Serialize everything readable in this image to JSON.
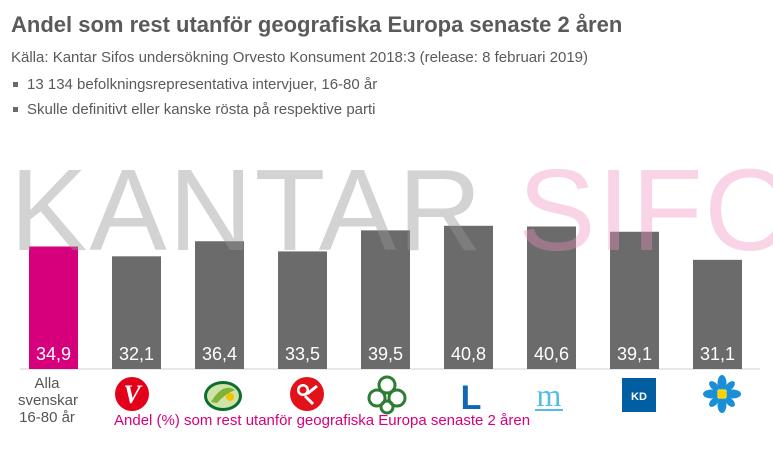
{
  "title": "Andel som rest utanför geografiska Europa senaste 2 åren",
  "source": "Källa: Kantar Sifos undersökning Orvesto Konsument 2018:3 (release: 8 februari 2019)",
  "notes": [
    "13 134 befolkningsrepresentativa intervjuer, 16-80 år",
    "Skulle definitivt eller kanske rösta på respektive parti"
  ],
  "watermark": {
    "part1": "KANTAR",
    "part2": "SIFO"
  },
  "colors": {
    "highlight": "#d6007d",
    "bar": "#6b6b6b",
    "label": "#ffffff",
    "text": "#5a5a5a"
  },
  "chart_data": {
    "type": "bar",
    "title": "Andel som rest utanför geografiska Europa senaste 2 åren",
    "legend": "Andel (%) som rest utanför geografiska Europa senaste 2 åren",
    "categories": [
      "Alla svenskar 16-80 år",
      "V",
      "C",
      "S",
      "MP",
      "L",
      "M",
      "KD",
      "SD"
    ],
    "values": [
      34.9,
      32.1,
      36.4,
      33.5,
      39.5,
      40.8,
      40.6,
      39.1,
      31.1
    ],
    "labels": [
      "34,9",
      "32,1",
      "36,4",
      "33,5",
      "39,5",
      "40,8",
      "40,6",
      "39,1",
      "31,1"
    ],
    "ylim": [
      0,
      45
    ],
    "xlabel": "",
    "ylabel": ""
  },
  "category_label": [
    "Alla",
    "svenskar",
    "16-80 år"
  ],
  "logos": [
    {
      "name": "v-logo-icon",
      "text": "V"
    },
    {
      "name": "c-logo-icon",
      "text": ""
    },
    {
      "name": "s-logo-icon",
      "text": ""
    },
    {
      "name": "mp-logo-icon",
      "text": ""
    },
    {
      "name": "l-logo-icon",
      "text": "L"
    },
    {
      "name": "m-logo-icon",
      "text": "m"
    },
    {
      "name": "kd-logo-icon",
      "text": "KD"
    },
    {
      "name": "sd-logo-icon",
      "text": ""
    }
  ]
}
